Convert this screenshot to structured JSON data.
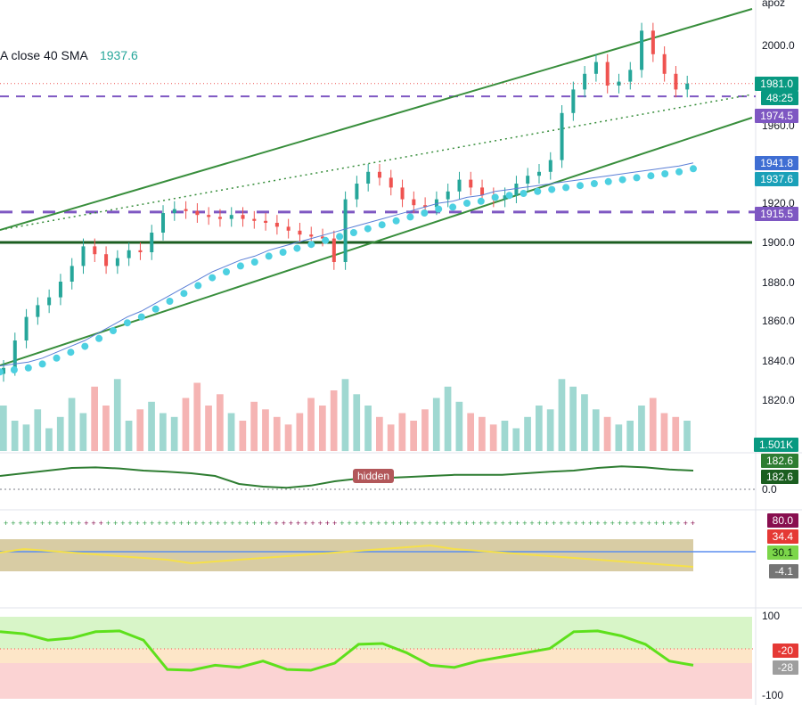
{
  "legend": {
    "label": "A close 40 SMA",
    "value": "1937.6",
    "value_color": "#26a69a"
  },
  "top_axis_text": "apoz",
  "hidden_badge": "hidden",
  "price_axis_ticks": [
    "2000.0",
    "1960.0",
    "1920.0",
    "1900.0",
    "1880.0",
    "1860.0",
    "1840.0",
    "1820.0"
  ],
  "price_tags": {
    "last": "1981.0",
    "countdown": "48:25",
    "level_1974": "1974.5",
    "ma_1941": "1941.8",
    "sma_1937": "1937.6",
    "level_1915": "1915.5",
    "volume": "1.501K"
  },
  "pane2": {
    "ticks": [
      "0.0"
    ],
    "tags": [
      "182.6",
      "182.6"
    ]
  },
  "pane3": {
    "tags": [
      "80.0",
      "34.4",
      "30.1",
      "-4.1"
    ]
  },
  "pane4": {
    "ticks": [
      "100",
      "-100"
    ],
    "tags": [
      "-20",
      "-28"
    ]
  },
  "colors": {
    "up": "#26a69a",
    "down": "#ef5350",
    "channel": "#388e3c",
    "sma": "#4dd0e1",
    "ma": "#5b7fd6",
    "dashed": "#7e57c2",
    "support": "#1b5e20"
  },
  "chart_data": {
    "type": "candlestick",
    "ylim": [
      1827,
      2018
    ],
    "levels": {
      "dashed_top": 1974.5,
      "dashed_mid": 1915.5,
      "support": 1900.0,
      "last_price": 1981.0
    },
    "close_series": [
      1836,
      1850,
      1862,
      1868,
      1872,
      1880,
      1888,
      1898,
      1894,
      1888,
      1892,
      1896,
      1895,
      1905,
      1915,
      1917,
      1916,
      1914,
      1913,
      1912,
      1914,
      1912,
      1911,
      1910,
      1908,
      1906,
      1904,
      1903,
      1902,
      1890,
      1922,
      1930,
      1936,
      1933,
      1928,
      1922,
      1919,
      1918,
      1922,
      1926,
      1932,
      1928,
      1924,
      1922,
      1924,
      1930,
      1934,
      1936,
      1942,
      1966,
      1978,
      1986,
      1992,
      1980,
      1982,
      1988,
      2008,
      1996,
      1986,
      1978,
      1981
    ],
    "sma_series": [
      1834,
      1835,
      1836,
      1838,
      1841,
      1844,
      1847,
      1851,
      1855,
      1859,
      1862,
      1866,
      1870,
      1874,
      1878,
      1882,
      1885,
      1888,
      1890,
      1893,
      1895,
      1897,
      1899,
      1901,
      1903,
      1905,
      1907,
      1909,
      1911,
      1913,
      1915,
      1917,
      1918,
      1920,
      1921,
      1923,
      1924,
      1925,
      1926,
      1927,
      1928,
      1929,
      1930,
      1931,
      1932,
      1933,
      1934,
      1935,
      1936,
      1937.6
    ],
    "volume_series": [
      60,
      40,
      35,
      55,
      30,
      45,
      70,
      50,
      85,
      60,
      95,
      40,
      55,
      65,
      50,
      45,
      70,
      90,
      60,
      75,
      50,
      40,
      65,
      55,
      45,
      35,
      50,
      70,
      60,
      80,
      95,
      75,
      60,
      45,
      35,
      50,
      40,
      55,
      70,
      85,
      65,
      50,
      45,
      35,
      40,
      30,
      45,
      60,
      55,
      95,
      85,
      75,
      55,
      45,
      35,
      40,
      60,
      70,
      50,
      45,
      40
    ],
    "osc1_series": [
      10,
      15,
      20,
      25,
      26,
      24,
      20,
      18,
      15,
      10,
      -5,
      -10,
      -12,
      -8,
      0,
      5,
      6,
      8,
      10,
      12,
      12,
      12,
      15,
      18,
      20,
      25,
      28,
      26,
      22,
      20
    ],
    "osc2_series": [
      0.5,
      0.6,
      0.55,
      0.5,
      0.45,
      0.4,
      0.35,
      0.3,
      0.2,
      0.25,
      0.3,
      0.35,
      0.4,
      0.45,
      0.5,
      0.55,
      0.6,
      0.65,
      0.7,
      0.6,
      0.55,
      0.5,
      0.45,
      0.4,
      0.35,
      0.3,
      0.25,
      0.2,
      0.15,
      0.1
    ],
    "osc3_series": [
      60,
      55,
      40,
      45,
      60,
      62,
      40,
      -30,
      -32,
      -20,
      -25,
      -10,
      -30,
      -32,
      -15,
      30,
      32,
      10,
      -20,
      -25,
      -10,
      0,
      10,
      20,
      60,
      62,
      50,
      30,
      -10,
      -20
    ]
  }
}
